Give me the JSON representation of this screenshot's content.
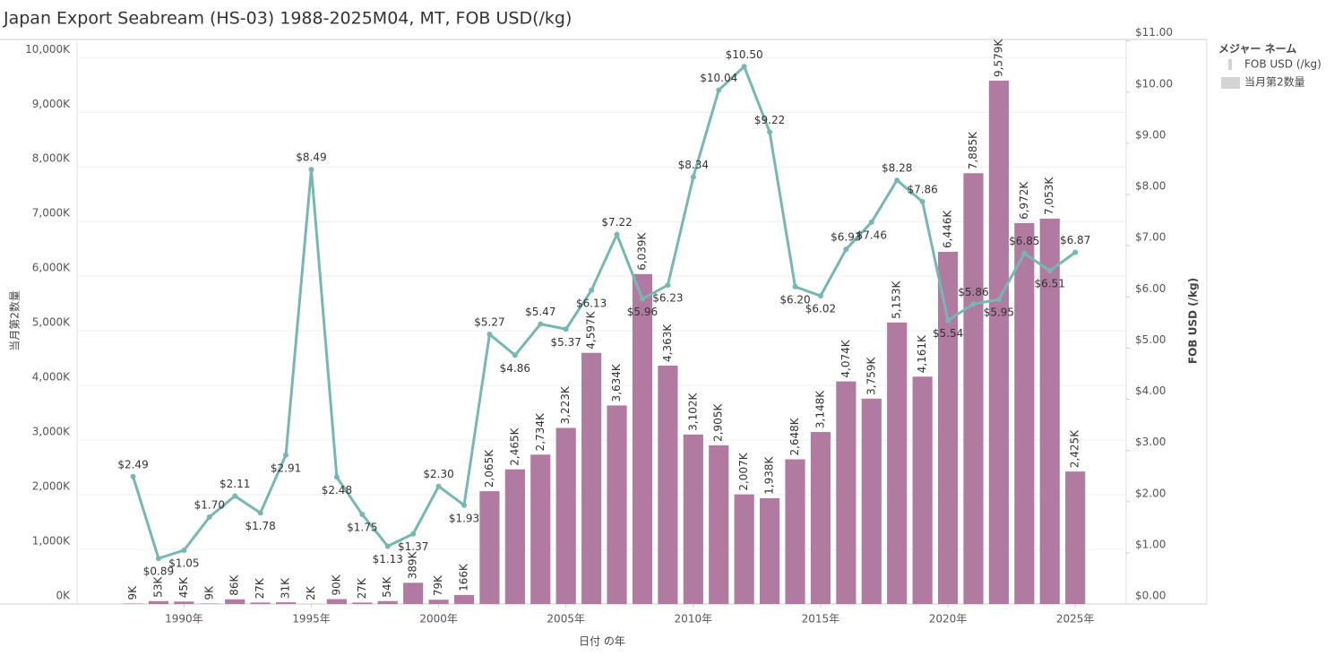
{
  "chart_data": {
    "type": "bar-line",
    "title": "Japan Export Seabream (HS-03) 1988-2025M04, MT, FOB USD(/kg)",
    "x_label": "日付 の年",
    "y_label": "当月第2数量",
    "y2_label": "FOB USD (/kg)",
    "legend_title": "メジャー ネーム",
    "legend_position": "right",
    "x": [
      1988,
      1989,
      1990,
      1991,
      1992,
      1993,
      1994,
      1995,
      1996,
      1997,
      1998,
      1999,
      2000,
      2001,
      2002,
      2003,
      2004,
      2005,
      2006,
      2007,
      2008,
      2009,
      2010,
      2011,
      2012,
      2013,
      2014,
      2015,
      2016,
      2017,
      2018,
      2019,
      2020,
      2021,
      2022,
      2023,
      2024,
      2025
    ],
    "xlim": [
      1985.8,
      2027
    ],
    "xticks": [
      {
        "value": 1990,
        "label": "1990年"
      },
      {
        "value": 1995,
        "label": "1995年"
      },
      {
        "value": 2000,
        "label": "2000年"
      },
      {
        "value": 2005,
        "label": "2005年"
      },
      {
        "value": 2010,
        "label": "2010年"
      },
      {
        "value": 2015,
        "label": "2015年"
      },
      {
        "value": 2020,
        "label": "2020年"
      },
      {
        "value": 2025,
        "label": "2025年"
      }
    ],
    "ylim": [
      0,
      10333000
    ],
    "yticks": [
      {
        "value": 0,
        "label": "0K"
      },
      {
        "value": 1000000,
        "label": "1,000K"
      },
      {
        "value": 2000000,
        "label": "2,000K"
      },
      {
        "value": 3000000,
        "label": "3,000K"
      },
      {
        "value": 4000000,
        "label": "4,000K"
      },
      {
        "value": 5000000,
        "label": "5,000K"
      },
      {
        "value": 6000000,
        "label": "6,000K"
      },
      {
        "value": 7000000,
        "label": "7,000K"
      },
      {
        "value": 8000000,
        "label": "8,000K"
      },
      {
        "value": 9000000,
        "label": "9,000K"
      },
      {
        "value": 10000000,
        "label": "10,000K"
      }
    ],
    "y2lim": [
      0,
      11.03
    ],
    "y2ticks": [
      {
        "value": 0,
        "label": "$0.00"
      },
      {
        "value": 1,
        "label": "$1.00"
      },
      {
        "value": 2,
        "label": "$2.00"
      },
      {
        "value": 3,
        "label": "$3.00"
      },
      {
        "value": 4,
        "label": "$4.00"
      },
      {
        "value": 5,
        "label": "$5.00"
      },
      {
        "value": 6,
        "label": "$6.00"
      },
      {
        "value": 7,
        "label": "$7.00"
      },
      {
        "value": 8,
        "label": "$8.00"
      },
      {
        "value": 9,
        "label": "$9.00"
      },
      {
        "value": 10,
        "label": "$10.00"
      },
      {
        "value": 11,
        "label": "$11.00"
      }
    ],
    "grid": true,
    "series": [
      {
        "name": "FOB USD (/kg)",
        "type": "line",
        "axis": "y2",
        "color": "#76b7b2",
        "legend_color": "#d4d4d4",
        "values": [
          2.49,
          0.89,
          1.05,
          1.7,
          2.11,
          1.78,
          2.91,
          8.49,
          2.48,
          1.75,
          1.13,
          1.37,
          2.3,
          1.93,
          5.27,
          4.86,
          5.47,
          5.37,
          6.13,
          7.22,
          5.96,
          6.23,
          8.34,
          10.04,
          10.5,
          9.22,
          6.2,
          6.02,
          6.93,
          7.46,
          8.28,
          7.86,
          5.54,
          5.86,
          5.95,
          6.85,
          6.51,
          6.87
        ],
        "value_labels": [
          "$2.49",
          "$0.89",
          "$1.05",
          "$1.70",
          "$2.11",
          "$1.78",
          "$2.91",
          "$8.49",
          "$2.48",
          "$1.75",
          "$1.13",
          "$1.37",
          "$2.30",
          "$1.93",
          "$5.27",
          "$4.86",
          "$5.47",
          "$5.37",
          "$6.13",
          "$7.22",
          "$5.96",
          "$6.23",
          "$8.34",
          "$10.04",
          "$10.50",
          "$9.22",
          "$6.20",
          "$6.02",
          "$6.93",
          "$7.46",
          "$8.28",
          "$7.86",
          "$5.54",
          "$5.86",
          "$5.95",
          "$6.85",
          "$6.51",
          "$6.87"
        ]
      },
      {
        "name": "当月第2数量",
        "type": "bar",
        "axis": "y",
        "color": "#b07aa1",
        "legend_color": "#d4d4d4",
        "values": [
          9000,
          53000,
          45000,
          9000,
          86000,
          27000,
          31000,
          2000,
          90000,
          27000,
          54000,
          389000,
          79000,
          166000,
          2065000,
          2465000,
          2734000,
          3223000,
          4597000,
          3634000,
          6039000,
          4363000,
          3102000,
          2905000,
          2007000,
          1938000,
          2648000,
          3148000,
          4074000,
          3759000,
          5153000,
          4161000,
          6446000,
          7885000,
          9579000,
          6972000,
          7053000,
          2425000
        ],
        "value_labels": [
          "9K",
          "53K",
          "45K",
          "9K",
          "86K",
          "27K",
          "31K",
          "2K",
          "90K",
          "27K",
          "54K",
          "389K",
          "79K",
          "166K",
          "2,065K",
          "2,465K",
          "2,734K",
          "3,223K",
          "4,597K",
          "3,634K",
          "6,039K",
          "4,363K",
          "3,102K",
          "2,905K",
          "2,007K",
          "1,938K",
          "2,648K",
          "3,148K",
          "4,074K",
          "3,759K",
          "5,153K",
          "4,161K",
          "6,446K",
          "7,885K",
          "9,579K",
          "6,972K",
          "7,053K",
          "2,425K"
        ]
      }
    ]
  }
}
